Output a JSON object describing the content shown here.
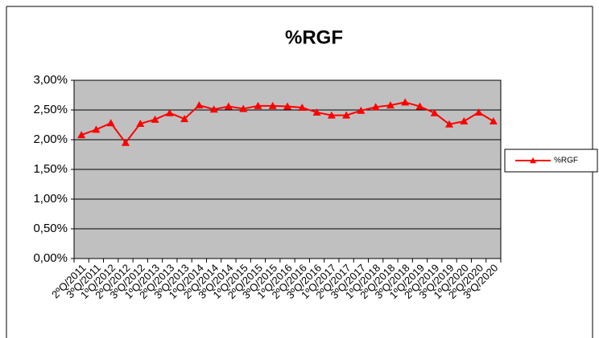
{
  "chart_data": {
    "type": "line",
    "title": "%RGF",
    "categories": [
      "2ºQ/2011",
      "3ºQ/2011",
      "1ºQ/2012",
      "2ºQ/2012",
      "3ºQ/2012",
      "1ºQ/2013",
      "2ºQ/2013",
      "3ºQ/2013",
      "1ºQ/2014",
      "2ºQ/2014",
      "3ºQ/2014",
      "1ºQ/2015",
      "2ºQ/2015",
      "3ºQ/2015",
      "1ºQ/2016",
      "2ºQ/2016",
      "3ºQ/2016",
      "1ºQ/2017",
      "2ºQ/2017",
      "3ºQ/2017",
      "1ºQ/2018",
      "2ºQ/2018",
      "3ºQ/2018",
      "1ºQ/2019",
      "2ºQ/2019",
      "3ºQ/2019",
      "1ºQ/2020",
      "2ºQ/2020",
      "3ºQ/2020"
    ],
    "series": [
      {
        "name": "%RGF",
        "color": "#ff0000",
        "values": [
          2.08,
          2.17,
          2.28,
          1.95,
          2.27,
          2.34,
          2.45,
          2.35,
          2.58,
          2.51,
          2.56,
          2.52,
          2.57,
          2.57,
          2.56,
          2.54,
          2.46,
          2.41,
          2.41,
          2.49,
          2.55,
          2.58,
          2.63,
          2.56,
          2.45,
          2.26,
          2.31,
          2.46,
          2.31
        ]
      }
    ],
    "ylim": [
      0,
      3
    ],
    "yticks": [
      {
        "value": 0,
        "label": "0,00%"
      },
      {
        "value": 0.5,
        "label": "0,50%"
      },
      {
        "value": 1,
        "label": "1,00%"
      },
      {
        "value": 1.5,
        "label": "1,50%"
      },
      {
        "value": 2,
        "label": "2,00%"
      },
      {
        "value": 2.5,
        "label": "2,50%"
      },
      {
        "value": 3,
        "label": "3,00%"
      }
    ],
    "grid": true,
    "legend": "right"
  }
}
